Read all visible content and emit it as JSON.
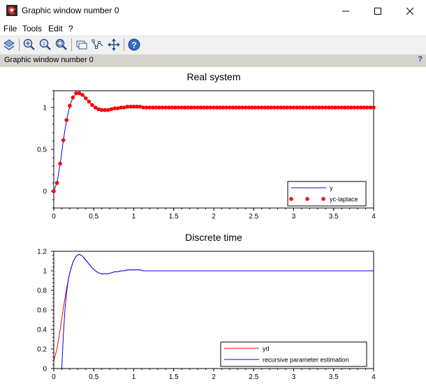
{
  "window": {
    "title": "Graphic window number 0",
    "controls": {
      "minimize": "—",
      "maximize": "☐",
      "close": "✕"
    }
  },
  "menu": {
    "items": [
      "File",
      "Tools",
      "Edit",
      "?"
    ]
  },
  "toolbar": {
    "icons": [
      "rotate-icon",
      "zoom-in-icon",
      "zoom-original-icon",
      "zoom-region-icon",
      "datatip-icon",
      "datatip-edit-icon",
      "pan-icon",
      "help-icon"
    ]
  },
  "infobar": {
    "text": "Graphic window number 0",
    "help": "?"
  },
  "chart_data": [
    {
      "type": "line",
      "title": "Real system",
      "xlim": [
        0,
        4
      ],
      "ylim": [
        -0.2,
        1.2
      ],
      "xticks": [
        "0",
        "0.5",
        "1",
        "1.5",
        "2",
        "2.5",
        "3",
        "3.5",
        "4"
      ],
      "yticks": [
        "0",
        "0.5",
        "1"
      ],
      "legend_position": "bottom-right",
      "series": [
        {
          "name": "y",
          "style": "line",
          "color": "#0000ff",
          "x": [
            0,
            0.04,
            0.08,
            0.12,
            0.16,
            0.2,
            0.24,
            0.28,
            0.32,
            0.36,
            0.4,
            0.44,
            0.48,
            0.52,
            0.56,
            0.6,
            0.64,
            0.68,
            0.72,
            0.76,
            0.8,
            0.84,
            0.88,
            0.92,
            0.96,
            1.0,
            1.04,
            1.08,
            1.12,
            1.16,
            1.2,
            1.24,
            1.28,
            1.32,
            1.36,
            1.4,
            1.5,
            1.6,
            1.8,
            2.0,
            2.5,
            3.0,
            3.5,
            4.0
          ],
          "y": [
            0,
            0.1,
            0.33,
            0.61,
            0.85,
            1.02,
            1.12,
            1.17,
            1.17,
            1.15,
            1.11,
            1.07,
            1.03,
            1.0,
            0.98,
            0.97,
            0.97,
            0.97,
            0.98,
            0.99,
            0.99,
            1.0,
            1.0,
            1.01,
            1.01,
            1.01,
            1.01,
            1.01,
            1.0,
            1.0,
            1.0,
            1.0,
            1.0,
            1.0,
            1.0,
            1.0,
            1.0,
            1.0,
            1.0,
            1.0,
            1.0,
            1.0,
            1.0,
            1.0
          ]
        },
        {
          "name": "yc-laplace",
          "style": "markers",
          "color": "#ff0000",
          "x": [
            0,
            0.04,
            0.08,
            0.12,
            0.16,
            0.2,
            0.24,
            0.28,
            0.32,
            0.36,
            0.4,
            0.44,
            0.48,
            0.52,
            0.56,
            0.6,
            0.64,
            0.68,
            0.72,
            0.76,
            0.8,
            0.84,
            0.88,
            0.92,
            0.96,
            1.0,
            1.04,
            1.08,
            1.12,
            1.16,
            1.2,
            1.24,
            1.28,
            1.32,
            1.36,
            1.4,
            1.44,
            1.48,
            1.52,
            1.56,
            1.6,
            1.64,
            1.68,
            1.72,
            1.76,
            1.8,
            1.84,
            1.88,
            1.92,
            1.96,
            2.0,
            2.04,
            2.08,
            2.12,
            2.16,
            2.2,
            2.24,
            2.28,
            2.32,
            2.36,
            2.4,
            2.44,
            2.48,
            2.52,
            2.56,
            2.6,
            2.64,
            2.68,
            2.72,
            2.76,
            2.8,
            2.84,
            2.88,
            2.92,
            2.96,
            3.0,
            3.04,
            3.08,
            3.12,
            3.16,
            3.2,
            3.24,
            3.28,
            3.32,
            3.36,
            3.4,
            3.44,
            3.48,
            3.52,
            3.56,
            3.6,
            3.64,
            3.68,
            3.72,
            3.76,
            3.8,
            3.84,
            3.88,
            3.92,
            3.96,
            4.0
          ],
          "y": [
            0,
            0.1,
            0.33,
            0.61,
            0.85,
            1.02,
            1.12,
            1.17,
            1.17,
            1.15,
            1.11,
            1.07,
            1.03,
            1.0,
            0.98,
            0.97,
            0.97,
            0.97,
            0.98,
            0.99,
            0.99,
            1.0,
            1.0,
            1.01,
            1.01,
            1.01,
            1.01,
            1.01,
            1.0,
            1.0,
            1.0,
            1.0,
            1.0,
            1.0,
            1.0,
            1.0,
            1.0,
            1.0,
            1.0,
            1.0,
            1.0,
            1.0,
            1.0,
            1.0,
            1.0,
            1.0,
            1.0,
            1.0,
            1.0,
            1.0,
            1.0,
            1.0,
            1.0,
            1.0,
            1.0,
            1.0,
            1.0,
            1.0,
            1.0,
            1.0,
            1.0,
            1.0,
            1.0,
            1.0,
            1.0,
            1.0,
            1.0,
            1.0,
            1.0,
            1.0,
            1.0,
            1.0,
            1.0,
            1.0,
            1.0,
            1.0,
            1.0,
            1.0,
            1.0,
            1.0,
            1.0,
            1.0,
            1.0,
            1.0,
            1.0,
            1.0,
            1.0,
            1.0,
            1.0,
            1.0,
            1.0,
            1.0,
            1.0,
            1.0,
            1.0,
            1.0,
            1.0,
            1.0,
            1.0,
            1.0,
            1.0
          ]
        }
      ]
    },
    {
      "type": "line",
      "title": "Discrete time",
      "xlim": [
        0,
        4
      ],
      "ylim": [
        0,
        1.2
      ],
      "xticks": [
        "0",
        "0.5",
        "1",
        "1.5",
        "2",
        "2.5",
        "3",
        "3.5",
        "4"
      ],
      "yticks": [
        "0",
        "0.2",
        "0.4",
        "0.6",
        "0.8",
        "1",
        "1.2"
      ],
      "legend_position": "bottom-right",
      "series": [
        {
          "name": "yd",
          "style": "line",
          "color": "#ff0000",
          "x": [
            0,
            0.04,
            0.08,
            0.12,
            0.16,
            0.2,
            0.24,
            0.28,
            0.32,
            0.36,
            0.4,
            0.44,
            0.48,
            0.52,
            0.56,
            0.6,
            0.64,
            0.68,
            0.72,
            0.76,
            0.8,
            0.84,
            0.88,
            0.92,
            0.96,
            1.0,
            1.04,
            1.08,
            1.12,
            1.16,
            1.2,
            1.24,
            1.28,
            1.32,
            1.4,
            1.6,
            2.0,
            2.5,
            3.0,
            3.5,
            4.0
          ],
          "y": [
            0.08,
            0.2,
            0.4,
            0.62,
            0.82,
            0.98,
            1.09,
            1.15,
            1.17,
            1.15,
            1.11,
            1.07,
            1.03,
            1.0,
            0.98,
            0.97,
            0.97,
            0.97,
            0.98,
            0.99,
            0.99,
            1.0,
            1.0,
            1.01,
            1.01,
            1.01,
            1.01,
            1.01,
            1.0,
            1.0,
            1.0,
            1.0,
            1.0,
            1.0,
            1.0,
            1.0,
            1.0,
            1.0,
            1.0,
            1.0,
            1.0
          ]
        },
        {
          "name": "recursive parameter estimation",
          "style": "line",
          "color": "#0000ff",
          "x": [
            0.1,
            0.12,
            0.14,
            0.16,
            0.18,
            0.2,
            0.24,
            0.28,
            0.32,
            0.36,
            0.4,
            0.44,
            0.48,
            0.52,
            0.56,
            0.6,
            0.64,
            0.68,
            0.72,
            0.76,
            0.8,
            0.84,
            0.88,
            0.92,
            0.96,
            1.0,
            1.04,
            1.08,
            1.12,
            1.16,
            1.2,
            1.24,
            1.28,
            1.32,
            1.4,
            1.6,
            2.0,
            2.5,
            3.0,
            3.5,
            4.0
          ],
          "y": [
            0,
            0.35,
            0.6,
            0.78,
            0.9,
            0.98,
            1.09,
            1.15,
            1.17,
            1.15,
            1.11,
            1.07,
            1.03,
            1.0,
            0.98,
            0.97,
            0.97,
            0.97,
            0.98,
            0.99,
            0.99,
            1.0,
            1.0,
            1.01,
            1.01,
            1.01,
            1.01,
            1.01,
            1.0,
            1.0,
            1.0,
            1.0,
            1.0,
            1.0,
            1.0,
            1.0,
            1.0,
            1.0,
            1.0,
            1.0,
            1.0
          ]
        }
      ]
    }
  ]
}
